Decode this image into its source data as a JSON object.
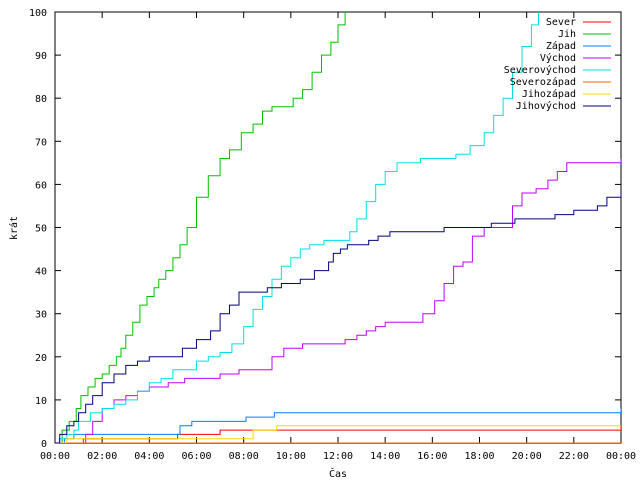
{
  "chart_data": {
    "type": "line",
    "xlabel": "Čas",
    "ylabel": "krát",
    "xlim": [
      0,
      24
    ],
    "ylim": [
      0,
      100
    ],
    "x_ticks": [
      {
        "v": 0,
        "label": "00:00"
      },
      {
        "v": 2,
        "label": "02:00"
      },
      {
        "v": 4,
        "label": "04:00"
      },
      {
        "v": 6,
        "label": "06:00"
      },
      {
        "v": 8,
        "label": "08:00"
      },
      {
        "v": 10,
        "label": "10:00"
      },
      {
        "v": 12,
        "label": "12:00"
      },
      {
        "v": 14,
        "label": "14:00"
      },
      {
        "v": 16,
        "label": "16:00"
      },
      {
        "v": 18,
        "label": "18:00"
      },
      {
        "v": 20,
        "label": "20:00"
      },
      {
        "v": 22,
        "label": "22:00"
      },
      {
        "v": 24,
        "label": "00:00"
      }
    ],
    "y_ticks": [
      0,
      10,
      20,
      30,
      40,
      50,
      60,
      70,
      80,
      90,
      100
    ],
    "grid": false,
    "legend_position": "top-right",
    "series": [
      {
        "name": "Sever",
        "color": "#ff0000",
        "x": [
          0,
          0.7,
          1.2,
          5.0,
          5.2,
          6.5,
          7.0,
          20.5,
          24
        ],
        "y": [
          0,
          0,
          1,
          1,
          2,
          2,
          3,
          3,
          4
        ]
      },
      {
        "name": "Jih",
        "color": "#00c000",
        "x": [
          0,
          0.3,
          0.6,
          0.9,
          1.1,
          1.4,
          1.7,
          2.0,
          2.3,
          2.6,
          2.8,
          3.0,
          3.3,
          3.6,
          3.9,
          4.2,
          4.4,
          4.7,
          5.0,
          5.3,
          5.6,
          6.0,
          6.5,
          7.0,
          7.4,
          7.9,
          8.4,
          8.8,
          9.2,
          9.7,
          10.1,
          10.5,
          10.9,
          11.3,
          11.7,
          12.0,
          12.3
        ],
        "y": [
          0,
          3,
          5,
          8,
          11,
          13,
          15,
          16,
          18,
          20,
          22,
          25,
          28,
          32,
          34,
          36,
          38,
          40,
          43,
          46,
          50,
          57,
          62,
          66,
          68,
          72,
          74,
          77,
          78,
          78,
          80,
          82,
          86,
          90,
          93,
          97,
          100
        ]
      },
      {
        "name": "Západ",
        "color": "#0080ff",
        "x": [
          0,
          0.4,
          0.8,
          1.3,
          5.0,
          5.3,
          5.8,
          7.0,
          8.1,
          9.3,
          21.2,
          24
        ],
        "y": [
          0,
          1,
          2,
          2,
          2,
          4,
          5,
          5,
          6,
          7,
          7,
          8
        ]
      },
      {
        "name": "Východ",
        "color": "#c000ff",
        "x": [
          0,
          1.3,
          1.6,
          2.0,
          2.5,
          3.0,
          3.5,
          4.0,
          4.8,
          5.5,
          7.0,
          7.8,
          9.2,
          9.7,
          10.1,
          10.5,
          11.4,
          12.3,
          12.8,
          13.2,
          13.6,
          14.0,
          14.4,
          15.0,
          15.6,
          16.1,
          16.5,
          16.9,
          17.3,
          17.7,
          18.2,
          18.6,
          19.0,
          19.4,
          19.8,
          20.4,
          20.9,
          21.3,
          21.7,
          22.3,
          23.0,
          24
        ],
        "y": [
          0,
          2,
          5,
          8,
          10,
          11,
          12,
          13,
          14,
          15,
          16,
          17,
          20,
          22,
          22,
          23,
          23,
          24,
          25,
          26,
          27,
          28,
          28,
          28,
          30,
          33,
          37,
          41,
          42,
          48,
          50,
          50,
          50,
          55,
          58,
          59,
          61,
          63,
          65,
          65,
          65,
          66
        ]
      },
      {
        "name": "Severovýchod",
        "color": "#00e0e0",
        "x": [
          0,
          0.2,
          0.5,
          0.8,
          1.0,
          1.5,
          2.0,
          2.5,
          3.0,
          3.5,
          4.0,
          4.5,
          5.0,
          6.0,
          6.5,
          7.0,
          7.5,
          8.0,
          8.4,
          8.8,
          9.2,
          9.6,
          10.0,
          10.4,
          10.8,
          11.4,
          12.0,
          12.5,
          12.8,
          13.2,
          13.6,
          14.0,
          14.5,
          15.5,
          17.0,
          17.6,
          18.2,
          18.6,
          19.0,
          19.4,
          19.8,
          20.2,
          20.5
        ],
        "y": [
          0,
          1,
          2,
          3,
          5,
          7,
          8,
          9,
          10,
          12,
          14,
          15,
          17,
          19,
          20,
          21,
          23,
          27,
          31,
          34,
          38,
          41,
          43,
          45,
          46,
          47,
          47,
          49,
          52,
          56,
          60,
          63,
          65,
          66,
          67,
          69,
          72,
          76,
          80,
          86,
          92,
          97,
          100
        ]
      },
      {
        "name": "Severozápad",
        "color": "#ff6000",
        "x": [
          0,
          24
        ],
        "y": [
          0,
          0
        ]
      },
      {
        "name": "Jihozápad",
        "color": "#ffd700",
        "x": [
          0,
          0.5,
          7.0,
          8.4,
          9.4,
          24
        ],
        "y": [
          0,
          1,
          1,
          3,
          4,
          4
        ]
      },
      {
        "name": "Jihovýchod",
        "color": "#000080",
        "x": [
          0,
          0.2,
          0.5,
          0.8,
          1.0,
          1.3,
          1.6,
          2.0,
          2.5,
          3.0,
          3.5,
          4.0,
          4.6,
          5.4,
          6.0,
          6.6,
          7.0,
          7.4,
          7.8,
          8.2,
          9.0,
          9.6,
          10.4,
          11.0,
          11.6,
          11.8,
          12.1,
          12.4,
          12.8,
          13.3,
          13.7,
          14.2,
          15.2,
          16.0,
          16.5,
          17.5,
          18.5,
          19.5,
          20.5,
          21.2,
          22.0,
          22.6,
          23.0,
          23.4,
          24
        ],
        "y": [
          0,
          2,
          4,
          5,
          7,
          9,
          11,
          14,
          16,
          18,
          19,
          20,
          20,
          22,
          24,
          26,
          30,
          32,
          35,
          35,
          36,
          37,
          38,
          40,
          42,
          44,
          45,
          46,
          46,
          47,
          48,
          49,
          49,
          49,
          50,
          50,
          51,
          52,
          52,
          53,
          54,
          54,
          55,
          57,
          58
        ]
      }
    ]
  }
}
